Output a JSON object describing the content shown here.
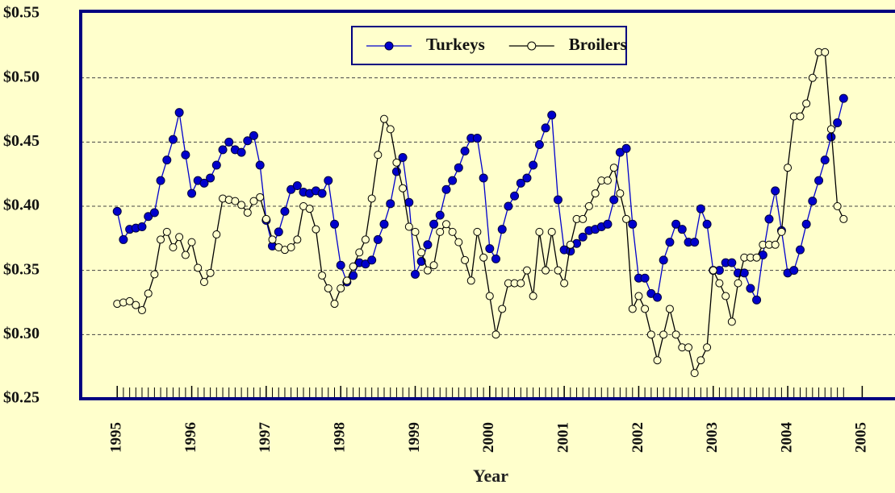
{
  "chart_data": {
    "type": "line",
    "x_label": "Year",
    "x": [
      1995,
      1995.083,
      1995.167,
      1995.25,
      1995.333,
      1995.417,
      1995.5,
      1995.583,
      1995.667,
      1995.75,
      1995.833,
      1995.917,
      1996,
      1996.083,
      1996.167,
      1996.25,
      1996.333,
      1996.417,
      1996.5,
      1996.583,
      1996.667,
      1996.75,
      1996.833,
      1996.917,
      1997,
      1997.083,
      1997.167,
      1997.25,
      1997.333,
      1997.417,
      1997.5,
      1997.583,
      1997.667,
      1997.75,
      1997.833,
      1997.917,
      1998,
      1998.083,
      1998.167,
      1998.25,
      1998.333,
      1998.417,
      1998.5,
      1998.583,
      1998.667,
      1998.75,
      1998.833,
      1998.917,
      1999,
      1999.083,
      1999.167,
      1999.25,
      1999.333,
      1999.417,
      1999.5,
      1999.583,
      1999.667,
      1999.75,
      1999.833,
      1999.917,
      2000,
      2000.083,
      2000.167,
      2000.25,
      2000.333,
      2000.417,
      2000.5,
      2000.583,
      2000.667,
      2000.75,
      2000.833,
      2000.917,
      2001,
      2001.083,
      2001.167,
      2001.25,
      2001.333,
      2001.417,
      2001.5,
      2001.583,
      2001.667,
      2001.75,
      2001.833,
      2001.917,
      2002,
      2002.083,
      2002.167,
      2002.25,
      2002.333,
      2002.417,
      2002.5,
      2002.583,
      2002.667,
      2002.75,
      2002.833,
      2002.917,
      2003,
      2003.083,
      2003.167,
      2003.25,
      2003.333,
      2003.417,
      2003.5,
      2003.583,
      2003.667,
      2003.75,
      2003.833,
      2003.917,
      2004,
      2004.083,
      2004.167,
      2004.25,
      2004.333,
      2004.417,
      2004.5,
      2004.583,
      2004.667,
      2004.75
    ],
    "series": [
      {
        "name": "Turkeys",
        "color": "#0000cc",
        "marker": "filled",
        "values": [
          0.396,
          0.374,
          0.382,
          0.383,
          0.384,
          0.392,
          0.395,
          0.42,
          0.436,
          0.452,
          0.473,
          0.44,
          0.41,
          0.42,
          0.418,
          0.422,
          0.432,
          0.444,
          0.45,
          0.444,
          0.442,
          0.451,
          0.455,
          0.432,
          0.389,
          0.369,
          0.38,
          0.396,
          0.413,
          0.416,
          0.411,
          0.41,
          0.412,
          0.41,
          0.42,
          0.386,
          0.354,
          0.341,
          0.346,
          0.356,
          0.355,
          0.358,
          0.374,
          0.386,
          0.402,
          0.427,
          0.438,
          0.403,
          0.347,
          0.357,
          0.37,
          0.386,
          0.393,
          0.413,
          0.42,
          0.43,
          0.443,
          0.453,
          0.453,
          0.422,
          0.367,
          0.359,
          0.382,
          0.4,
          0.408,
          0.418,
          0.422,
          0.432,
          0.448,
          0.461,
          0.471,
          0.405,
          0.366,
          0.365,
          0.371,
          0.376,
          0.381,
          0.382,
          0.384,
          0.386,
          0.405,
          0.442,
          0.445,
          0.386,
          0.344,
          0.344,
          0.332,
          0.329,
          0.358,
          0.372,
          0.386,
          0.382,
          0.372,
          0.372,
          0.398,
          0.386,
          0.35,
          0.35,
          0.356,
          0.356,
          0.348,
          0.348,
          0.336,
          0.327,
          0.362,
          0.39,
          0.412,
          0.381,
          0.348,
          0.35,
          0.366,
          0.386,
          0.404,
          0.42,
          0.436,
          0.454,
          0.465,
          0.484
        ]
      },
      {
        "name": "Broilers",
        "color": "#000000",
        "marker": "open",
        "values": [
          0.324,
          0.325,
          0.326,
          0.323,
          0.319,
          0.332,
          0.347,
          0.374,
          0.38,
          0.368,
          0.376,
          0.362,
          0.372,
          0.352,
          0.341,
          0.348,
          0.378,
          0.406,
          0.405,
          0.404,
          0.401,
          0.395,
          0.404,
          0.407,
          0.39,
          0.374,
          0.368,
          0.366,
          0.368,
          0.374,
          0.4,
          0.398,
          0.382,
          0.346,
          0.336,
          0.324,
          0.336,
          0.342,
          0.353,
          0.364,
          0.374,
          0.406,
          0.44,
          0.468,
          0.46,
          0.434,
          0.414,
          0.384,
          0.38,
          0.364,
          0.35,
          0.354,
          0.38,
          0.386,
          0.38,
          0.372,
          0.358,
          0.342,
          0.38,
          0.36,
          0.33,
          0.3,
          0.32,
          0.34,
          0.34,
          0.34,
          0.35,
          0.33,
          0.38,
          0.35,
          0.38,
          0.35,
          0.34,
          0.37,
          0.39,
          0.39,
          0.4,
          0.41,
          0.42,
          0.42,
          0.43,
          0.41,
          0.39,
          0.32,
          0.33,
          0.32,
          0.3,
          0.28,
          0.3,
          0.32,
          0.3,
          0.29,
          0.29,
          0.27,
          0.28,
          0.29,
          0.35,
          0.34,
          0.33,
          0.31,
          0.34,
          0.36,
          0.36,
          0.36,
          0.37,
          0.37,
          0.37,
          0.38,
          0.43,
          0.47,
          0.47,
          0.48,
          0.5,
          0.52,
          0.52,
          0.46,
          0.4,
          0.39
        ]
      }
    ],
    "xlim": [
      1994.51,
      2005.44
    ],
    "xticks": [
      1995,
      1996,
      1997,
      1998,
      1999,
      2000,
      2001,
      2002,
      2003,
      2004,
      2005
    ],
    "ylim": [
      0.25,
      0.55
    ],
    "yticks": [
      {
        "value": 0.25,
        "label": "$0.25"
      },
      {
        "value": 0.3,
        "label": "$0.30"
      },
      {
        "value": 0.35,
        "label": "$0.35"
      },
      {
        "value": 0.4,
        "label": "$0.40"
      },
      {
        "value": 0.45,
        "label": "$0.45"
      },
      {
        "value": 0.5,
        "label": "$0.50"
      },
      {
        "value": 0.55,
        "label": "$0.55"
      }
    ],
    "grid": true,
    "legend": "top"
  }
}
